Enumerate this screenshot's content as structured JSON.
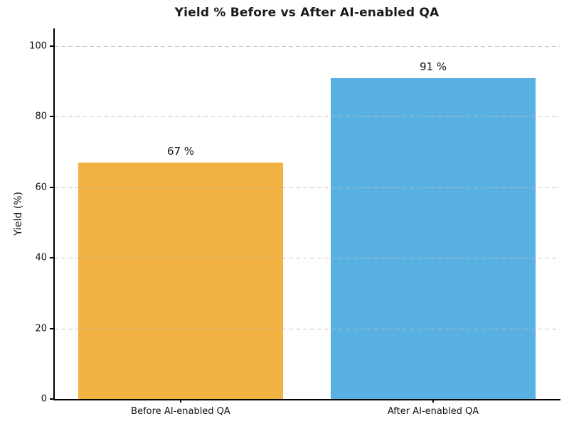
{
  "chart_data": {
    "type": "bar",
    "title": "Yield % Before vs After AI-enabled QA",
    "title_color": "#1a1a1a",
    "categories": [
      "Before AI-enabled QA",
      "After AI-enabled QA"
    ],
    "values": [
      67,
      91
    ],
    "bar_labels": [
      "67 %",
      "91 %"
    ],
    "bar_colors": [
      "#F2B242",
      "#58B1E2"
    ],
    "xlabel": "",
    "ylabel": "Yield (%)",
    "ylim": [
      0,
      105
    ],
    "yticks": [
      0,
      20,
      40,
      60,
      80,
      100
    ],
    "grid": "horizontal dashed, drawn above bars",
    "legend": "none"
  }
}
